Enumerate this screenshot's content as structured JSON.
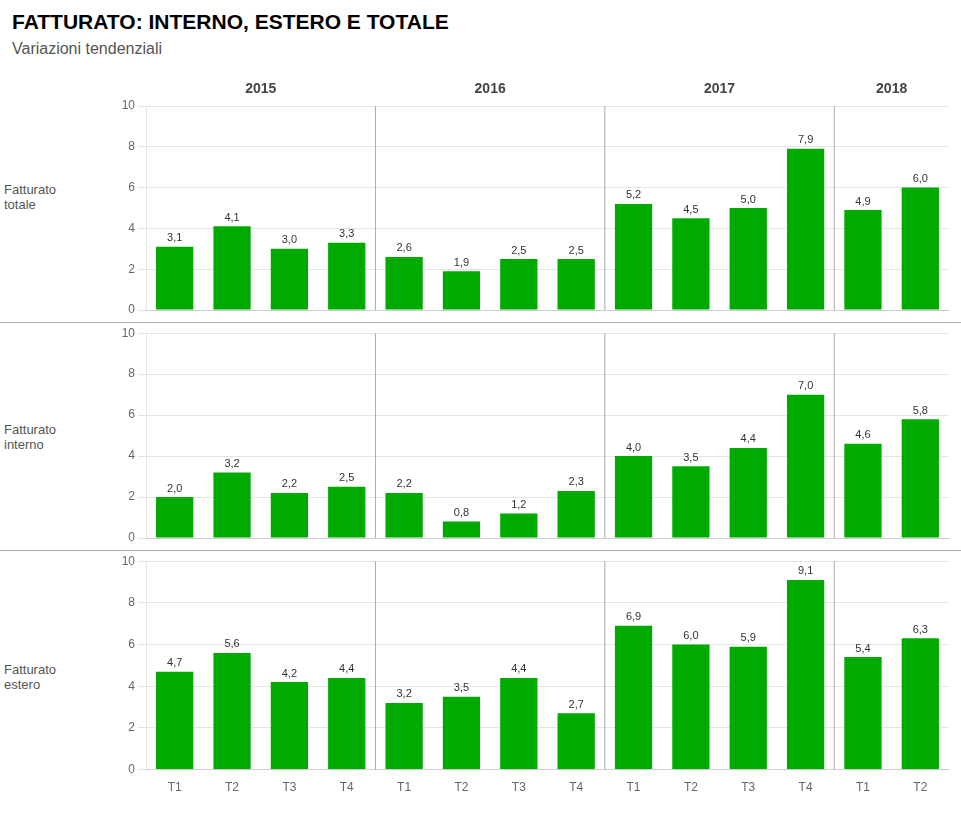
{
  "chart_data": [
    {
      "type": "bar",
      "title": "FATTURATO: INTERNO, ESTERO E TOTALE",
      "subtitle": "Variazioni tendenziali",
      "ylabel": "Fatturato\ntotale",
      "category_groups": [
        {
          "name": "2015",
          "categories": [
            "T1",
            "T2",
            "T3",
            "T4"
          ]
        },
        {
          "name": "2016",
          "categories": [
            "T1",
            "T2",
            "T3",
            "T4"
          ]
        },
        {
          "name": "2017",
          "categories": [
            "T1",
            "T2",
            "T3",
            "T4"
          ]
        },
        {
          "name": "2018",
          "categories": [
            "T1",
            "T2"
          ]
        }
      ],
      "categories": [
        "T1",
        "T2",
        "T3",
        "T4",
        "T1",
        "T2",
        "T3",
        "T4",
        "T1",
        "T2",
        "T3",
        "T4",
        "T1",
        "T2"
      ],
      "values": [
        3.1,
        4.1,
        3.0,
        3.3,
        2.6,
        1.9,
        2.5,
        2.5,
        5.2,
        4.5,
        5.0,
        7.9,
        4.9,
        6.0
      ],
      "value_labels": [
        "3,1",
        "4,1",
        "3,0",
        "3,3",
        "2,6",
        "1,9",
        "2,5",
        "2,5",
        "5,2",
        "4,5",
        "5,0",
        "7,9",
        "4,9",
        "6,0"
      ],
      "color": "#00aa00",
      "ylim": [
        0,
        10
      ],
      "yticks": [
        0,
        2,
        4,
        6,
        8,
        10
      ],
      "grid": true,
      "data_labels": true,
      "tick_labels": "y"
    },
    {
      "type": "bar",
      "ylabel": "Fatturato\ninterno",
      "categories": [
        "T1",
        "T2",
        "T3",
        "T4",
        "T1",
        "T2",
        "T3",
        "T4",
        "T1",
        "T2",
        "T3",
        "T4",
        "T1",
        "T2"
      ],
      "values": [
        2.0,
        3.2,
        2.2,
        2.5,
        2.2,
        0.8,
        1.2,
        2.3,
        4.0,
        3.5,
        4.4,
        7.0,
        4.6,
        5.8
      ],
      "value_labels": [
        "2,0",
        "3,2",
        "2,2",
        "2,5",
        "2,2",
        "0,8",
        "1,2",
        "2,3",
        "4,0",
        "3,5",
        "4,4",
        "7,0",
        "4,6",
        "5,8"
      ],
      "color": "#00aa00",
      "ylim": [
        0,
        10
      ],
      "yticks": [
        0,
        2,
        4,
        6,
        8,
        10
      ],
      "grid": true,
      "data_labels": true,
      "tick_labels": "y"
    },
    {
      "type": "bar",
      "ylabel": "Fatturato\nestero",
      "categories": [
        "T1",
        "T2",
        "T3",
        "T4",
        "T1",
        "T2",
        "T3",
        "T4",
        "T1",
        "T2",
        "T3",
        "T4",
        "T1",
        "T2"
      ],
      "values": [
        4.7,
        5.6,
        4.2,
        4.4,
        3.2,
        3.5,
        4.4,
        2.7,
        6.9,
        6.0,
        5.9,
        9.1,
        5.4,
        6.3
      ],
      "value_labels": [
        "4,7",
        "5,6",
        "4,2",
        "4,4",
        "3,2",
        "3,5",
        "4,4",
        "2,7",
        "6,9",
        "6,0",
        "5,9",
        "9,1",
        "5,4",
        "6,3"
      ],
      "color": "#00aa00",
      "ylim": [
        0,
        10
      ],
      "yticks": [
        0,
        2,
        4,
        6,
        8,
        10
      ],
      "grid": true,
      "data_labels": true
    }
  ]
}
